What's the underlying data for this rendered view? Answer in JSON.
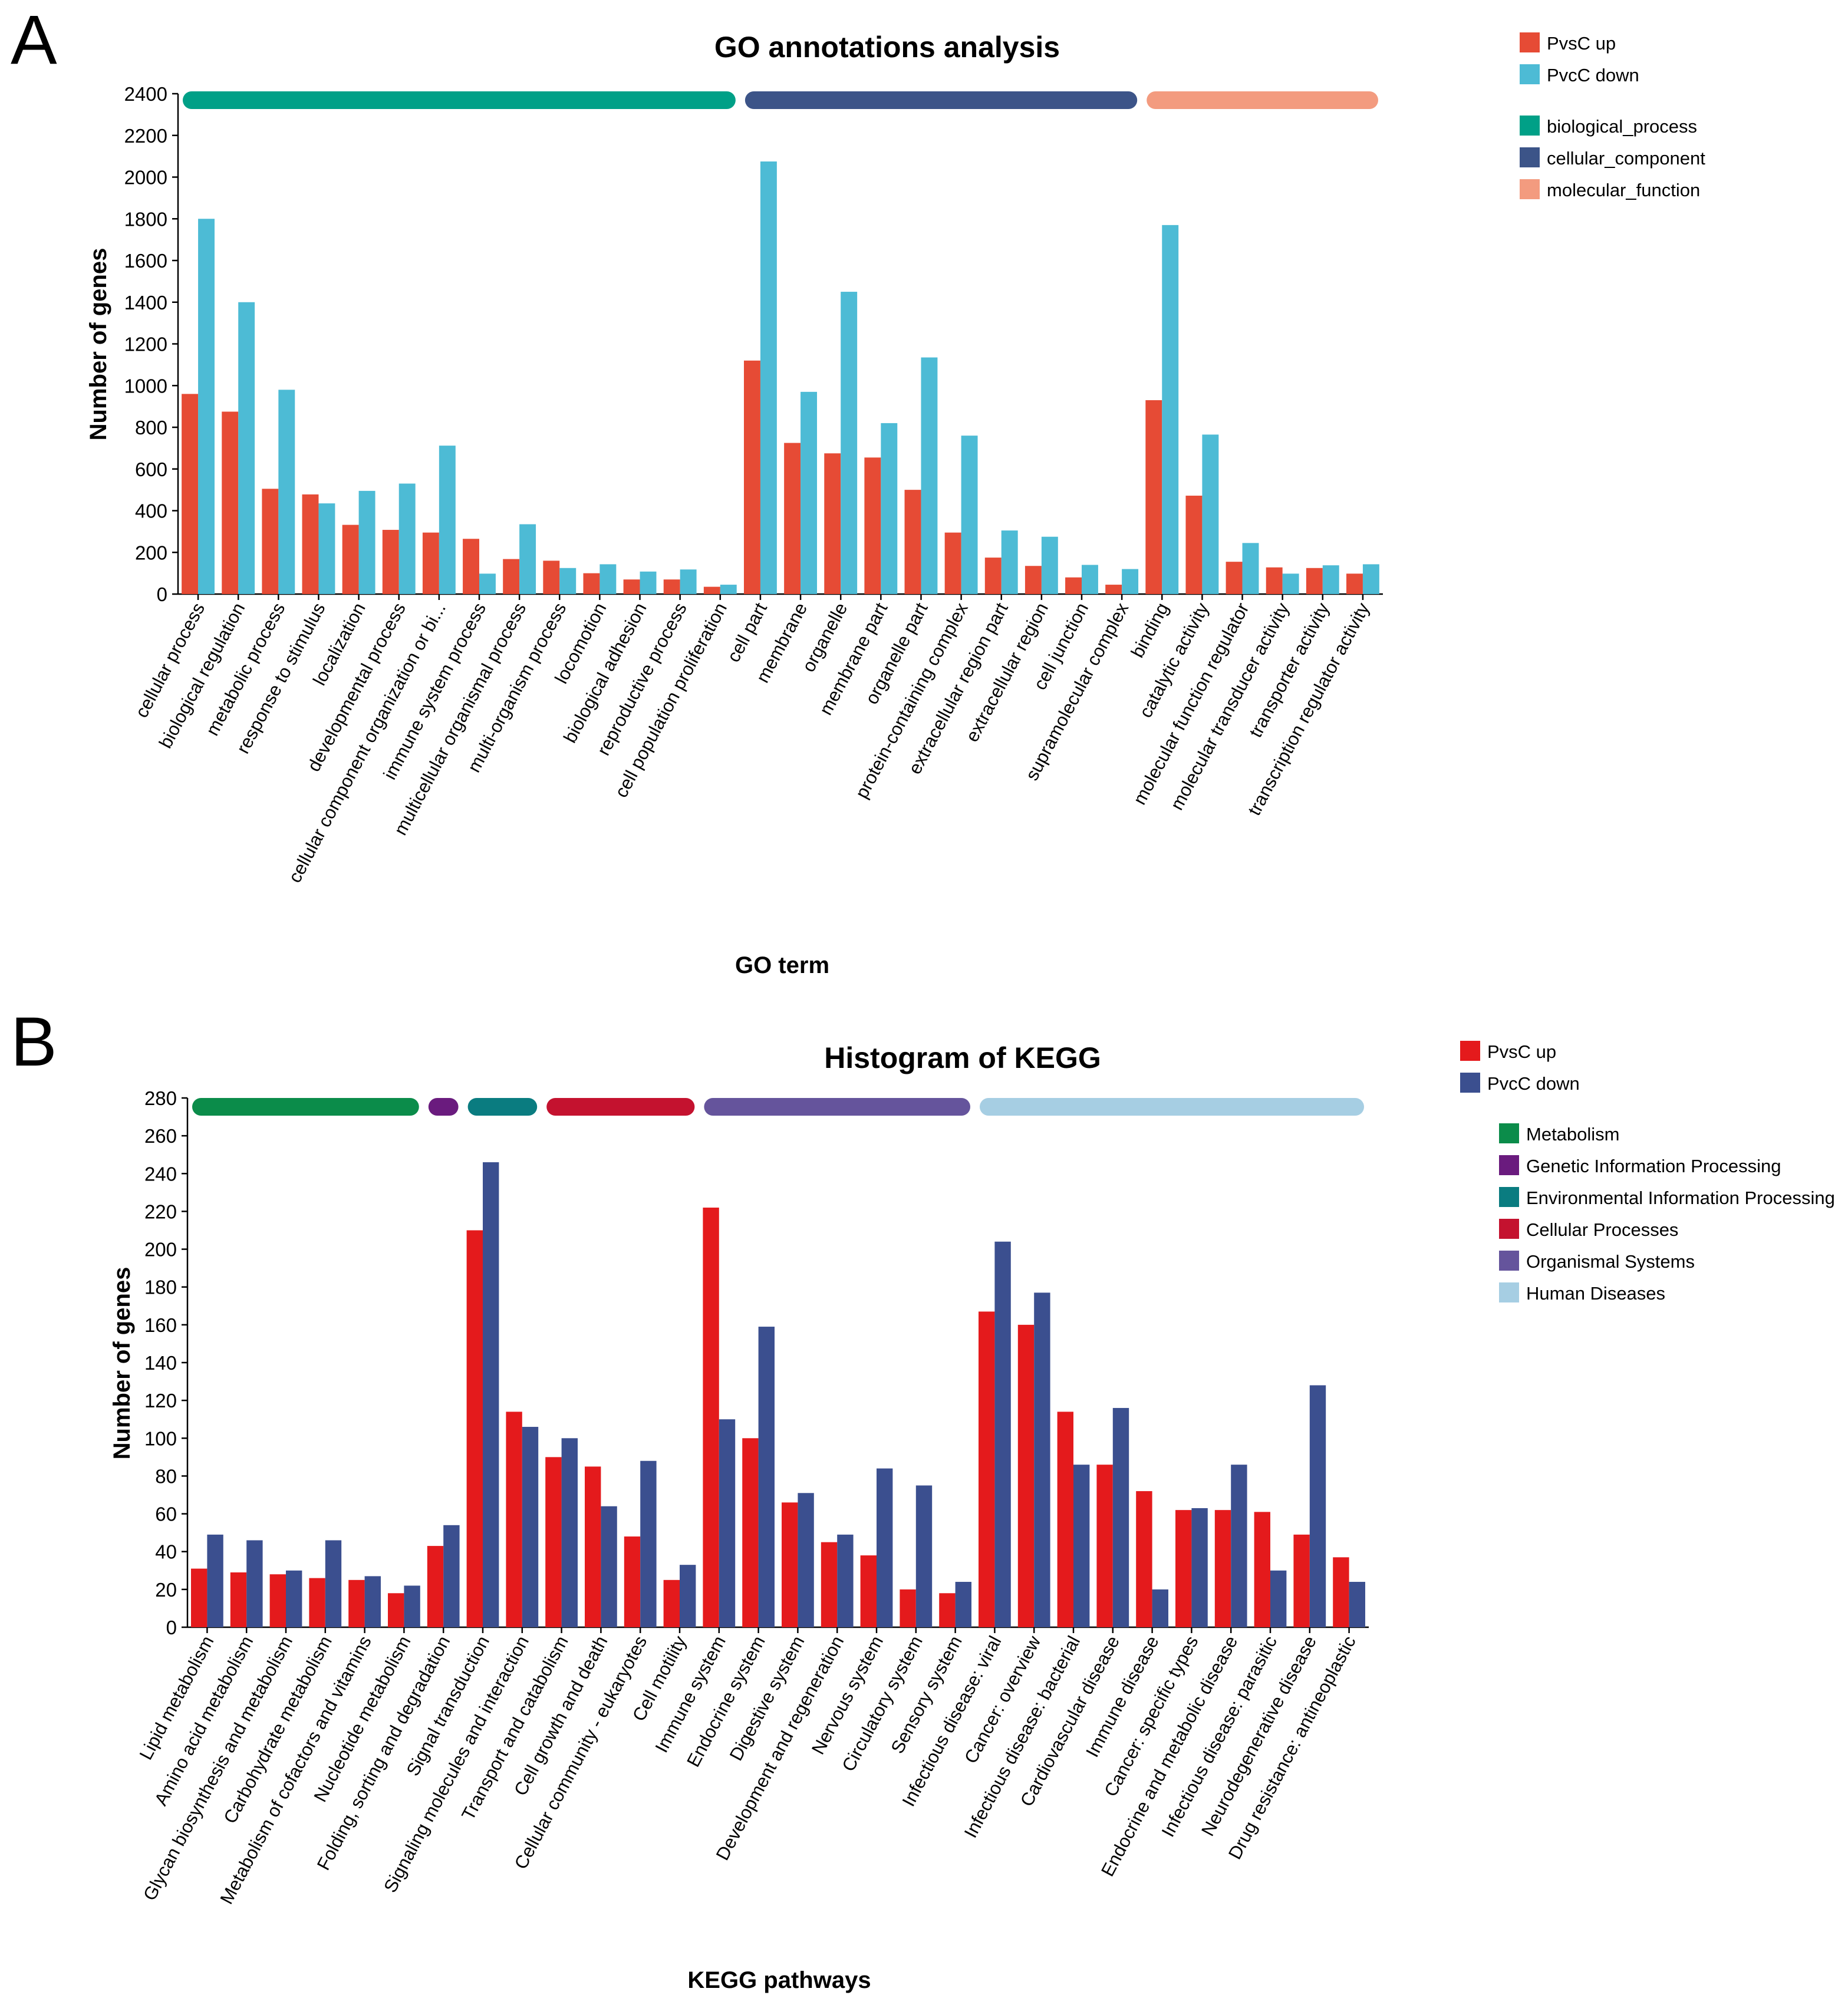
{
  "panels": [
    {
      "letter": "A",
      "legend": {
        "series": [
          {
            "label": "PvsC up",
            "color": "#e64b35"
          },
          {
            "label": "PvcC down",
            "color": "#4dbbd5"
          }
        ],
        "groups": [
          {
            "label": "biological_process",
            "color": "#00a087"
          },
          {
            "label": "cellular_component",
            "color": "#3c5488"
          },
          {
            "label": "molecular_function",
            "color": "#f39b7f"
          }
        ]
      }
    },
    {
      "letter": "B",
      "legend": {
        "series": [
          {
            "label": "PvsC up",
            "color": "#e41a1c"
          },
          {
            "label": "PvcC down",
            "color": "#3b4f8f"
          }
        ],
        "groups": [
          {
            "label": "Metabolism",
            "color": "#0b8c4a"
          },
          {
            "label": "Genetic Information Processing",
            "color": "#6a1b7e"
          },
          {
            "label": "Environmental Information Processing",
            "color": "#0a7c80"
          },
          {
            "label": "Cellular Processes",
            "color": "#c4122f"
          },
          {
            "label": "Organismal Systems",
            "color": "#65549c"
          },
          {
            "label": "Human Diseases",
            "color": "#a6cee3"
          }
        ]
      }
    }
  ],
  "chart_data": [
    {
      "type": "bar",
      "title": "GO annotations analysis",
      "xlabel": "GO term",
      "ylabel": "Number of genes",
      "ylim": [
        0,
        2400
      ],
      "yticks": [
        0,
        200,
        400,
        600,
        800,
        1000,
        1200,
        1400,
        1600,
        1800,
        2000,
        2200,
        2400
      ],
      "categories": [
        "cellular process",
        "biological regulation",
        "metabolic process",
        "response to stimulus",
        "localization",
        "developmental process",
        "cellular component organization or bi...",
        "immune system process",
        "multicellular organismal process",
        "multi-organism process",
        "locomotion",
        "biological adhesion",
        "reproductive process",
        "cell population proliferation",
        "cell part",
        "membrane",
        "organelle",
        "membrane part",
        "organelle part",
        "protein-containing complex",
        "extracellular region part",
        "extracellular region",
        "cell junction",
        "supramolecular complex",
        "binding",
        "catalytic activity",
        "molecular function regulator",
        "molecular transducer activity",
        "transporter activity",
        "transcription regulator activity"
      ],
      "series": [
        {
          "name": "PvsC up",
          "values": [
            960,
            875,
            505,
            478,
            332,
            308,
            295,
            265,
            168,
            160,
            100,
            70,
            70,
            35,
            1120,
            725,
            675,
            655,
            500,
            295,
            175,
            135,
            80,
            45,
            930,
            472,
            155,
            128,
            125,
            98
          ]
        },
        {
          "name": "PvcC down",
          "values": [
            1800,
            1400,
            980,
            435,
            495,
            530,
            712,
            98,
            335,
            125,
            143,
            108,
            118,
            45,
            2075,
            970,
            1450,
            820,
            1135,
            760,
            305,
            275,
            140,
            120,
            1770,
            765,
            245,
            98,
            138,
            143
          ]
        }
      ],
      "groups": [
        {
          "name": "biological_process",
          "start": 0,
          "end": 13
        },
        {
          "name": "cellular_component",
          "start": 14,
          "end": 23
        },
        {
          "name": "molecular_function",
          "start": 24,
          "end": 29
        }
      ],
      "legend_position": "top-right",
      "grid": false
    },
    {
      "type": "bar",
      "title": "Histogram of KEGG",
      "xlabel": "KEGG pathways",
      "ylabel": "Number of genes",
      "ylim": [
        0,
        280
      ],
      "yticks": [
        0,
        20,
        40,
        60,
        80,
        100,
        120,
        140,
        160,
        180,
        200,
        220,
        240,
        260,
        280
      ],
      "categories": [
        "Lipid metabolism",
        "Amino acid metabolism",
        "Glycan biosynthesis and metabolism",
        "Carbohydrate metabolism",
        "Metabolism of cofactors and vitamins",
        "Nucleotide metabolism",
        "Folding, sorting and degradation",
        "Signal transduction",
        "Signaling molecules and interaction",
        "Transport and catabolism",
        "Cell growth and death",
        "Cellular community - eukaryotes",
        "Cell motility",
        "Immune system",
        "Endocrine system",
        "Digestive system",
        "Development and regeneration",
        "Nervous system",
        "Circulatory system",
        "Sensory system",
        "Infectious disease: viral",
        "Cancer: overview",
        "Infectious disease: bacterial",
        "Cardiovascular disease",
        "Immune disease",
        "Cancer: specific types",
        "Endocrine and metabolic disease",
        "Infectious disease: parasitic",
        "Neurodegenerative disease",
        "Drug resistance: antineoplastic"
      ],
      "series": [
        {
          "name": "PvsC up",
          "values": [
            31,
            29,
            28,
            26,
            25,
            18,
            43,
            210,
            114,
            90,
            85,
            48,
            25,
            222,
            100,
            66,
            45,
            38,
            20,
            18,
            167,
            160,
            114,
            86,
            72,
            62,
            62,
            61,
            49,
            37
          ]
        },
        {
          "name": "PvcC down",
          "values": [
            49,
            46,
            30,
            46,
            27,
            22,
            54,
            246,
            106,
            100,
            64,
            88,
            33,
            110,
            159,
            71,
            49,
            84,
            75,
            24,
            204,
            177,
            86,
            116,
            20,
            63,
            86,
            30,
            128,
            24
          ]
        }
      ],
      "groups": [
        {
          "name": "Metabolism",
          "start": 0,
          "end": 5
        },
        {
          "name": "Genetic Information Processing",
          "start": 6,
          "end": 6
        },
        {
          "name": "Environmental Information Processing",
          "start": 7,
          "end": 8
        },
        {
          "name": "Cellular Processes",
          "start": 9,
          "end": 12
        },
        {
          "name": "Organismal Systems",
          "start": 13,
          "end": 19
        },
        {
          "name": "Human Diseases",
          "start": 20,
          "end": 29
        }
      ],
      "legend_position": "top-right",
      "grid": false
    }
  ]
}
